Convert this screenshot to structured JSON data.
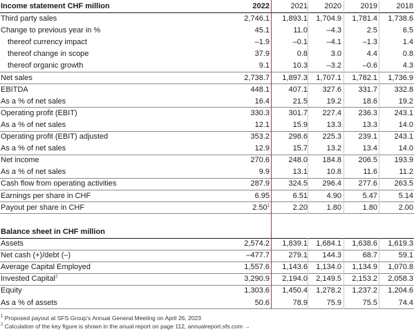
{
  "income": {
    "title": "Income statement CHF million",
    "years": [
      "2022",
      "2021",
      "2020",
      "2019",
      "2018"
    ],
    "rows": [
      {
        "label": "Third party sales",
        "values": [
          "2,746.1",
          "1,893.1",
          "1,704.9",
          "1,781.4",
          "1,738.6"
        ]
      },
      {
        "label": "Change to previous year in %",
        "values": [
          "45.1",
          "11.0",
          "–4.3",
          "2.5",
          "6.5"
        ]
      },
      {
        "label": "thereof currency impact",
        "values": [
          "–1.9",
          "–0.1",
          "–4.1",
          "–1.3",
          "1.4"
        ]
      },
      {
        "label": "thereof change in scope",
        "values": [
          "37.9",
          "0.8",
          "3.0",
          "4.4",
          "0.8"
        ]
      },
      {
        "label": "thereof organic growth",
        "values": [
          "9.1",
          "10.3",
          "–3.2",
          "–0.6",
          "4.3"
        ]
      },
      {
        "label": "Net sales",
        "values": [
          "2,738.7",
          "1,897.3",
          "1,707.1",
          "1,782.1",
          "1,736.9"
        ]
      },
      {
        "label": "EBITDA",
        "values": [
          "448.1",
          "407.1",
          "327.6",
          "331.7",
          "332.8"
        ]
      },
      {
        "label": "As a % of net sales",
        "values": [
          "16.4",
          "21.5",
          "19.2",
          "18.6",
          "19.2"
        ]
      },
      {
        "label": "Operating profit (EBIT)",
        "values": [
          "330.3",
          "301.7",
          "227.4",
          "236.3",
          "243.1"
        ]
      },
      {
        "label": "As a % of net sales",
        "values": [
          "12.1",
          "15.9",
          "13.3",
          "13.3",
          "14.0"
        ]
      },
      {
        "label": "Operating profit (EBIT) adjusted",
        "values": [
          "353.2",
          "298.6",
          "225.3",
          "239.1",
          "243.1"
        ]
      },
      {
        "label": "As a % of net sales",
        "values": [
          "12.9",
          "15.7",
          "13.2",
          "13.4",
          "14.0"
        ]
      },
      {
        "label": "Net income",
        "values": [
          "270.6",
          "248.0",
          "184.8",
          "206.5",
          "193.9"
        ]
      },
      {
        "label": "As a % of net sales",
        "values": [
          "9.9",
          "13.1",
          "10.8",
          "11.6",
          "11.2"
        ]
      },
      {
        "label": "Cash flow from operating activities",
        "values": [
          "287.9",
          "324.5",
          "296.4",
          "277.6",
          "263.5"
        ]
      },
      {
        "label": "Earnings per share in CHF",
        "values": [
          "6.95",
          "6.51",
          "4.90",
          "5.47",
          "5.14"
        ]
      },
      {
        "label": "Payout per share in CHF",
        "values": [
          "2.50",
          "2.20",
          "1.80",
          "1.80",
          "2.00"
        ],
        "sup0": "1"
      }
    ]
  },
  "balance": {
    "title": "Balance sheet in CHF million",
    "rows": [
      {
        "label": "Assets",
        "values": [
          "2,574.2",
          "1,839.1",
          "1,684.1",
          "1,638.6",
          "1,619.3"
        ]
      },
      {
        "label": "Net cash (+)/debt (–)",
        "values": [
          "–477.7",
          "279.1",
          "144.3",
          "68.7",
          "59.1"
        ]
      },
      {
        "label": "Average Capital Employed",
        "values": [
          "1,557.6",
          "1,143.6",
          "1,134.0",
          "1,134.9",
          "1,070.8"
        ]
      },
      {
        "label": "Invested Capital",
        "label_sup": "2",
        "values": [
          "3,290.9",
          "2,194.0",
          "2,149.5",
          "2,153.2",
          "2,058.3"
        ]
      },
      {
        "label": "Equity",
        "values": [
          "1,303.6",
          "1,450.4",
          "1,278.2",
          "1,237.2",
          "1,204.6"
        ]
      },
      {
        "label": "As a % of assets",
        "values": [
          "50.6",
          "78.9",
          "75.9",
          "75.5",
          "74.4"
        ]
      }
    ]
  },
  "footnotes": {
    "note1_mark": "1",
    "note1": "Proposed payout at SFS Group’s Annual General Meeting on April 26, 2023",
    "note2_mark": "2",
    "note2": "Calculation of the key figure is shown in the anual report on page 112, annualreport.sfs.com",
    "arrow": "→"
  }
}
